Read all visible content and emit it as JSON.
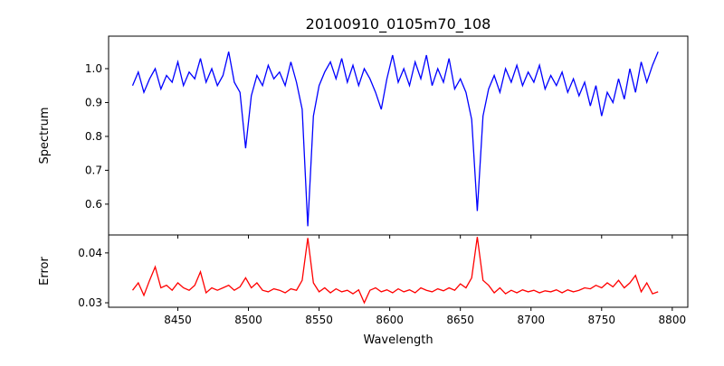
{
  "chart_data": {
    "type": "line",
    "title": "20100910_0105m70_108",
    "xlabel": "Wavelength",
    "xlim": [
      8401,
      8811
    ],
    "xticks": [
      8450,
      8500,
      8550,
      8600,
      8650,
      8700,
      8750,
      8800
    ],
    "x": [
      8418,
      8422,
      8426,
      8430,
      8434,
      8438,
      8442,
      8446,
      8450,
      8454,
      8458,
      8462,
      8466,
      8470,
      8474,
      8478,
      8482,
      8486,
      8490,
      8494,
      8498,
      8502,
      8506,
      8510,
      8514,
      8518,
      8522,
      8526,
      8530,
      8534,
      8538,
      8542,
      8546,
      8550,
      8554,
      8558,
      8562,
      8566,
      8570,
      8574,
      8578,
      8582,
      8586,
      8590,
      8594,
      8598,
      8602,
      8606,
      8610,
      8614,
      8618,
      8622,
      8626,
      8630,
      8634,
      8638,
      8642,
      8646,
      8650,
      8654,
      8658,
      8662,
      8666,
      8670,
      8674,
      8678,
      8682,
      8686,
      8690,
      8694,
      8698,
      8702,
      8706,
      8710,
      8714,
      8718,
      8722,
      8726,
      8730,
      8734,
      8738,
      8742,
      8746,
      8750,
      8754,
      8758,
      8762,
      8766,
      8770,
      8774,
      8778,
      8782,
      8786,
      8790
    ],
    "panels": [
      {
        "name": "spectrum",
        "ylabel": "Spectrum",
        "ylim": [
          0.509,
          1.096
        ],
        "yticks": [
          "0.6",
          "0.7",
          "0.8",
          "0.9",
          "1.0"
        ],
        "color": "#0000ff",
        "values": [
          0.95,
          0.99,
          0.93,
          0.97,
          1.0,
          0.94,
          0.98,
          0.96,
          1.02,
          0.95,
          0.99,
          0.97,
          1.03,
          0.96,
          1.0,
          0.95,
          0.98,
          1.05,
          0.96,
          0.93,
          0.765,
          0.92,
          0.98,
          0.95,
          1.01,
          0.97,
          0.99,
          0.95,
          1.02,
          0.96,
          0.88,
          0.535,
          0.86,
          0.95,
          0.99,
          1.02,
          0.97,
          1.03,
          0.96,
          1.01,
          0.95,
          1.0,
          0.97,
          0.93,
          0.88,
          0.97,
          1.04,
          0.96,
          1.0,
          0.95,
          1.02,
          0.97,
          1.04,
          0.95,
          1.0,
          0.96,
          1.03,
          0.94,
          0.97,
          0.93,
          0.85,
          0.58,
          0.86,
          0.94,
          0.98,
          0.93,
          1.0,
          0.96,
          1.01,
          0.95,
          0.99,
          0.96,
          1.01,
          0.94,
          0.98,
          0.95,
          0.99,
          0.93,
          0.97,
          0.92,
          0.96,
          0.89,
          0.95,
          0.86,
          0.93,
          0.9,
          0.97,
          0.91,
          1.0,
          0.93,
          1.02,
          0.96,
          1.01,
          1.05
        ]
      },
      {
        "name": "error",
        "ylabel": "Error",
        "ylim": [
          0.0291,
          0.0436
        ],
        "yticks": [
          "0.03",
          "0.04"
        ],
        "color": "#ff0000",
        "values": [
          0.0325,
          0.034,
          0.0315,
          0.0345,
          0.0372,
          0.033,
          0.0335,
          0.0325,
          0.034,
          0.033,
          0.0325,
          0.0335,
          0.0362,
          0.032,
          0.033,
          0.0325,
          0.033,
          0.0335,
          0.0325,
          0.0332,
          0.035,
          0.033,
          0.034,
          0.0325,
          0.0322,
          0.0328,
          0.0325,
          0.032,
          0.0328,
          0.0325,
          0.0345,
          0.043,
          0.034,
          0.0322,
          0.033,
          0.032,
          0.0328,
          0.0322,
          0.0325,
          0.0318,
          0.0326,
          0.03,
          0.0325,
          0.033,
          0.0322,
          0.0326,
          0.032,
          0.0328,
          0.0322,
          0.0326,
          0.032,
          0.033,
          0.0325,
          0.0322,
          0.0328,
          0.0324,
          0.033,
          0.0325,
          0.0338,
          0.033,
          0.035,
          0.0432,
          0.0345,
          0.0335,
          0.032,
          0.033,
          0.0318,
          0.0325,
          0.032,
          0.0326,
          0.0322,
          0.0325,
          0.032,
          0.0324,
          0.0322,
          0.0326,
          0.032,
          0.0326,
          0.0322,
          0.0325,
          0.033,
          0.0328,
          0.0335,
          0.033,
          0.034,
          0.0332,
          0.0345,
          0.033,
          0.034,
          0.0355,
          0.0322,
          0.034,
          0.0318,
          0.0322
        ]
      }
    ]
  }
}
